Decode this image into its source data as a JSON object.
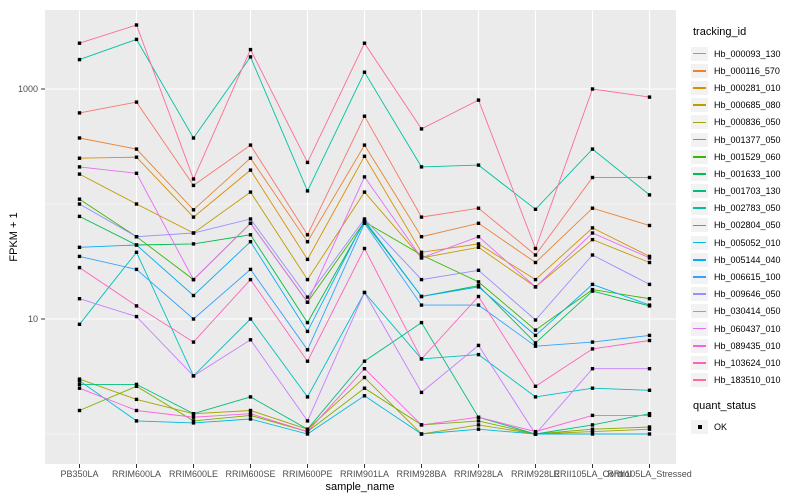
{
  "figure": {
    "background": "#FFFFFF",
    "panel_background": "#EBEBEB",
    "gridline_color": "#FFFFFF",
    "tick_color": "#333333",
    "axis_text_color": "#4D4D4D",
    "point_color": "#000000",
    "legend_key_background": "#F2F2F2"
  },
  "chart_data": {
    "type": "line",
    "title": "",
    "xlabel": "sample_name",
    "ylabel": "FPKM + 1",
    "y_scale": "log10",
    "grid": "on",
    "legend_position": "right",
    "y_ticks": [
      {
        "label": "1000",
        "value": 1000
      },
      {
        "label": "10",
        "value": 10
      }
    ],
    "y_major_gridlines": [
      1000,
      10
    ],
    "y_minor_gridlines": [
      100,
      1
    ],
    "categories": [
      "PB350LA",
      "RRIM600LA",
      "RRIM600LE",
      "RRIM600SE",
      "RRIM600PE",
      "RRIM901LA",
      "RRIM928BA",
      "RRIM928LA",
      "RRIM928LE",
      "RRII105LA_Control",
      "RRII105LA_Stressed"
    ],
    "legend_title": "tracking_id",
    "series": [
      {
        "name": "Hb_000093_130",
        "color": "#F8766D",
        "values": [
          620,
          770,
          145,
          325,
          54,
          580,
          77,
          92,
          36,
          170,
          170
        ]
      },
      {
        "name": "Hb_000116_570",
        "color": "#EA8331",
        "values": [
          375,
          300,
          89,
          250,
          47,
          325,
          52,
          68,
          31,
          92,
          65
        ]
      },
      {
        "name": "Hb_000281_010",
        "color": "#D89000",
        "values": [
          250,
          255,
          77,
          197,
          33,
          260,
          38,
          45,
          22,
          62,
          35
        ]
      },
      {
        "name": "Hb_000685_080",
        "color": "#C09B00",
        "values": [
          182,
          100,
          56,
          127,
          22,
          127,
          34,
          42,
          19,
          49,
          31
        ]
      },
      {
        "name": "Hb_000836_050",
        "color": "#A3A500",
        "values": [
          3.0,
          2.0,
          1.5,
          1.6,
          1.1,
          3.1,
          1.0,
          1.2,
          1.0,
          1.05,
          1.1
        ]
      },
      {
        "name": "Hb_001377_050",
        "color": "#7CAE00",
        "values": [
          1.6,
          2.6,
          1.3,
          1.45,
          1.05,
          2.5,
          1.2,
          1.3,
          1.0,
          1.1,
          1.15
        ]
      },
      {
        "name": "Hb_001529_060",
        "color": "#39B600",
        "values": [
          110,
          52,
          22,
          68,
          14,
          70,
          36,
          21,
          8,
          18,
          15
        ]
      },
      {
        "name": "Hb_001633_100",
        "color": "#00BB4E",
        "values": [
          78,
          44,
          45,
          54,
          9.3,
          70,
          15.7,
          19.5,
          6.2,
          17.5,
          13
        ]
      },
      {
        "name": "Hb_001703_130",
        "color": "#00BF7D",
        "values": [
          2.7,
          2.7,
          1.5,
          2.1,
          1.1,
          4.3,
          9.3,
          1.4,
          1.0,
          1.2,
          1.5
        ]
      },
      {
        "name": "Hb_002783_050",
        "color": "#00C1A3",
        "values": [
          1800,
          2700,
          375,
          1900,
          130,
          1400,
          210,
          218,
          90,
          300,
          120
        ]
      },
      {
        "name": "Hb_002804_050",
        "color": "#00BFC4",
        "values": [
          9,
          38,
          3.2,
          10,
          2.1,
          17,
          4.5,
          4.9,
          2.1,
          2.5,
          2.4
        ]
      },
      {
        "name": "Hb_005052_010",
        "color": "#00BAE0",
        "values": [
          2.9,
          1.3,
          1.25,
          1.35,
          1.0,
          2.15,
          1.0,
          1.1,
          1.0,
          1.0,
          1.0
        ]
      },
      {
        "name": "Hb_005144_040",
        "color": "#00B0F6",
        "values": [
          42,
          44,
          16,
          47,
          7.8,
          72,
          15.7,
          19,
          7.2,
          20,
          13.2
        ]
      },
      {
        "name": "Hb_006615_100",
        "color": "#35A2FF",
        "values": [
          35,
          27,
          10,
          27,
          5.4,
          68,
          13.2,
          13.2,
          5.8,
          6.3,
          7.2
        ]
      },
      {
        "name": "Hb_009646_050",
        "color": "#9590FF",
        "values": [
          100,
          52,
          56,
          74,
          15.5,
          74,
          22,
          26.5,
          9.8,
          36,
          20
        ]
      },
      {
        "name": "Hb_030414_050",
        "color": "#C77CFF",
        "values": [
          15,
          10.5,
          3.2,
          6.6,
          1.3,
          17,
          2.3,
          5.9,
          1.0,
          3.7,
          3.7
        ]
      },
      {
        "name": "Hb_060437_010",
        "color": "#E76BF3",
        "values": [
          210,
          185,
          22,
          68,
          14,
          172,
          34,
          52,
          19,
          56,
          34
        ]
      },
      {
        "name": "Hb_089435_010",
        "color": "#FA62DB",
        "values": [
          2.5,
          1.6,
          1.4,
          1.5,
          1.05,
          3.7,
          1.2,
          1.4,
          1.05,
          1.45,
          1.45
        ]
      },
      {
        "name": "Hb_103624_010",
        "color": "#FF62BC",
        "values": [
          28,
          13,
          6.3,
          22,
          4.3,
          41,
          4.5,
          15.7,
          2.6,
          5.5,
          6.5
        ]
      },
      {
        "name": "Hb_183510_010",
        "color": "#FF6A98",
        "values": [
          2500,
          3600,
          165,
          2200,
          230,
          2500,
          450,
          800,
          41,
          1000,
          850
        ]
      }
    ],
    "quant_legend": {
      "title": "quant_status",
      "items": [
        "OK"
      ],
      "marker": "black-square"
    }
  }
}
